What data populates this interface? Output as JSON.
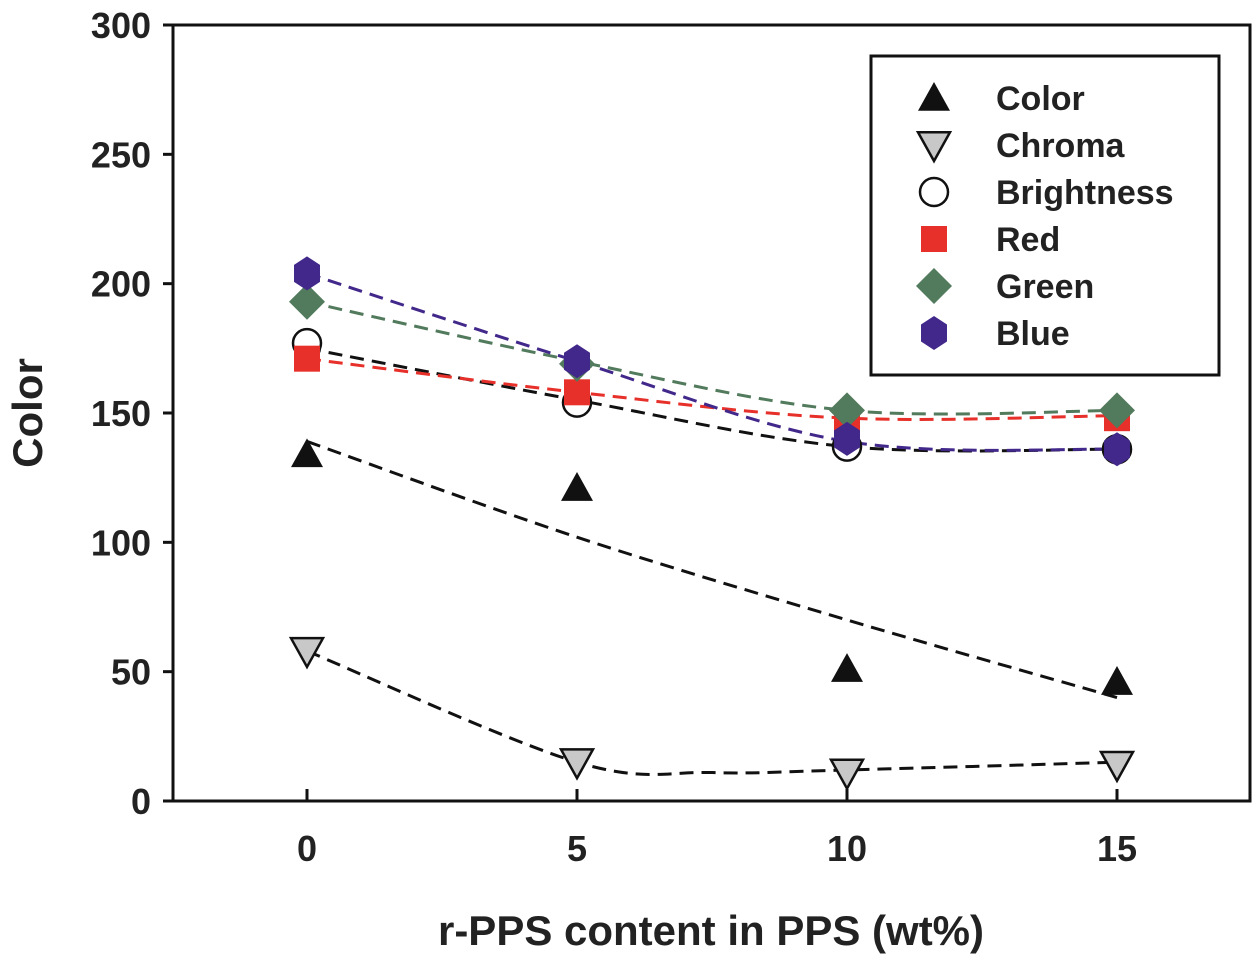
{
  "chart_data": {
    "type": "scatter",
    "title": "",
    "xlabel": "r-PPS content in PPS (wt%)",
    "ylabel": "Color",
    "xlim": [
      -2.5,
      17.5
    ],
    "ylim": [
      0,
      300
    ],
    "x_ticks": [
      0,
      5,
      10,
      15
    ],
    "y_ticks": [
      0,
      50,
      100,
      150,
      200,
      250,
      300
    ],
    "grid": false,
    "legend_position": "top-right",
    "x": [
      0,
      5,
      10,
      15
    ],
    "series": [
      {
        "name": "Color",
        "marker": "triangle-up",
        "color": "#111111",
        "line_color": "#111111",
        "values": [
          134,
          121,
          51,
          46
        ],
        "fit": [
          [
            0,
            139
          ],
          [
            5,
            102
          ],
          [
            10,
            70
          ],
          [
            15,
            40
          ]
        ]
      },
      {
        "name": "Chroma",
        "marker": "triangle-down",
        "color": "#c8c8c8",
        "line_color": "#111111",
        "values": [
          58,
          15,
          11,
          14
        ],
        "fit": [
          [
            0,
            58
          ],
          [
            5,
            15
          ],
          [
            7.5,
            11
          ],
          [
            10,
            12
          ],
          [
            15,
            15
          ]
        ]
      },
      {
        "name": "Brightness",
        "marker": "circle-open",
        "color": "#ffffff",
        "line_color": "#111111",
        "values": [
          177,
          154,
          137,
          136
        ],
        "fit": [
          [
            0,
            175
          ],
          [
            5,
            155
          ],
          [
            10,
            137
          ],
          [
            15,
            136
          ]
        ]
      },
      {
        "name": "Red",
        "marker": "square",
        "color": "#e8302a",
        "line_color": "#e8302a",
        "values": [
          171,
          158,
          147,
          148
        ],
        "fit": [
          [
            0,
            171
          ],
          [
            5,
            158
          ],
          [
            10,
            148
          ],
          [
            15,
            149
          ]
        ]
      },
      {
        "name": "Green",
        "marker": "diamond",
        "color": "#527a5c",
        "line_color": "#527a5c",
        "values": [
          193,
          169,
          151,
          151
        ],
        "fit": [
          [
            0,
            193
          ],
          [
            5,
            170
          ],
          [
            10,
            151
          ],
          [
            15,
            151
          ]
        ]
      },
      {
        "name": "Blue",
        "marker": "hexagon",
        "color": "#41288a",
        "line_color": "#41288a",
        "values": [
          204,
          170,
          140,
          136
        ],
        "fit": [
          [
            0,
            204
          ],
          [
            5,
            170
          ],
          [
            10,
            139
          ],
          [
            15,
            136
          ]
        ]
      }
    ]
  }
}
